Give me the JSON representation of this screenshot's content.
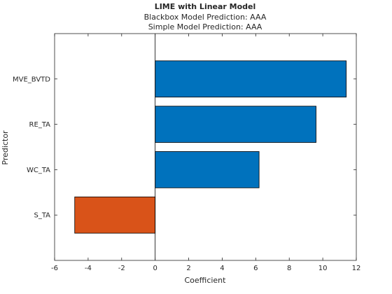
{
  "chart_data": {
    "type": "bar",
    "orientation": "horizontal",
    "title": "LIME with Linear Model",
    "subtitle": [
      "Blackbox Model Prediction: AAA",
      "Simple Model Prediction: AAA"
    ],
    "xlabel": "Coefficient",
    "ylabel": "Predictor",
    "categories": [
      "MVE_BVTD",
      "RE_TA",
      "WC_TA",
      "S_TA"
    ],
    "values": [
      11.4,
      9.6,
      6.2,
      -4.8
    ],
    "xlim": [
      -6,
      12
    ],
    "xticks": [
      -6,
      -4,
      -2,
      0,
      2,
      4,
      6,
      8,
      10,
      12
    ],
    "grid": false,
    "colors": {
      "positive": "#0072BD",
      "negative": "#D95319"
    }
  }
}
